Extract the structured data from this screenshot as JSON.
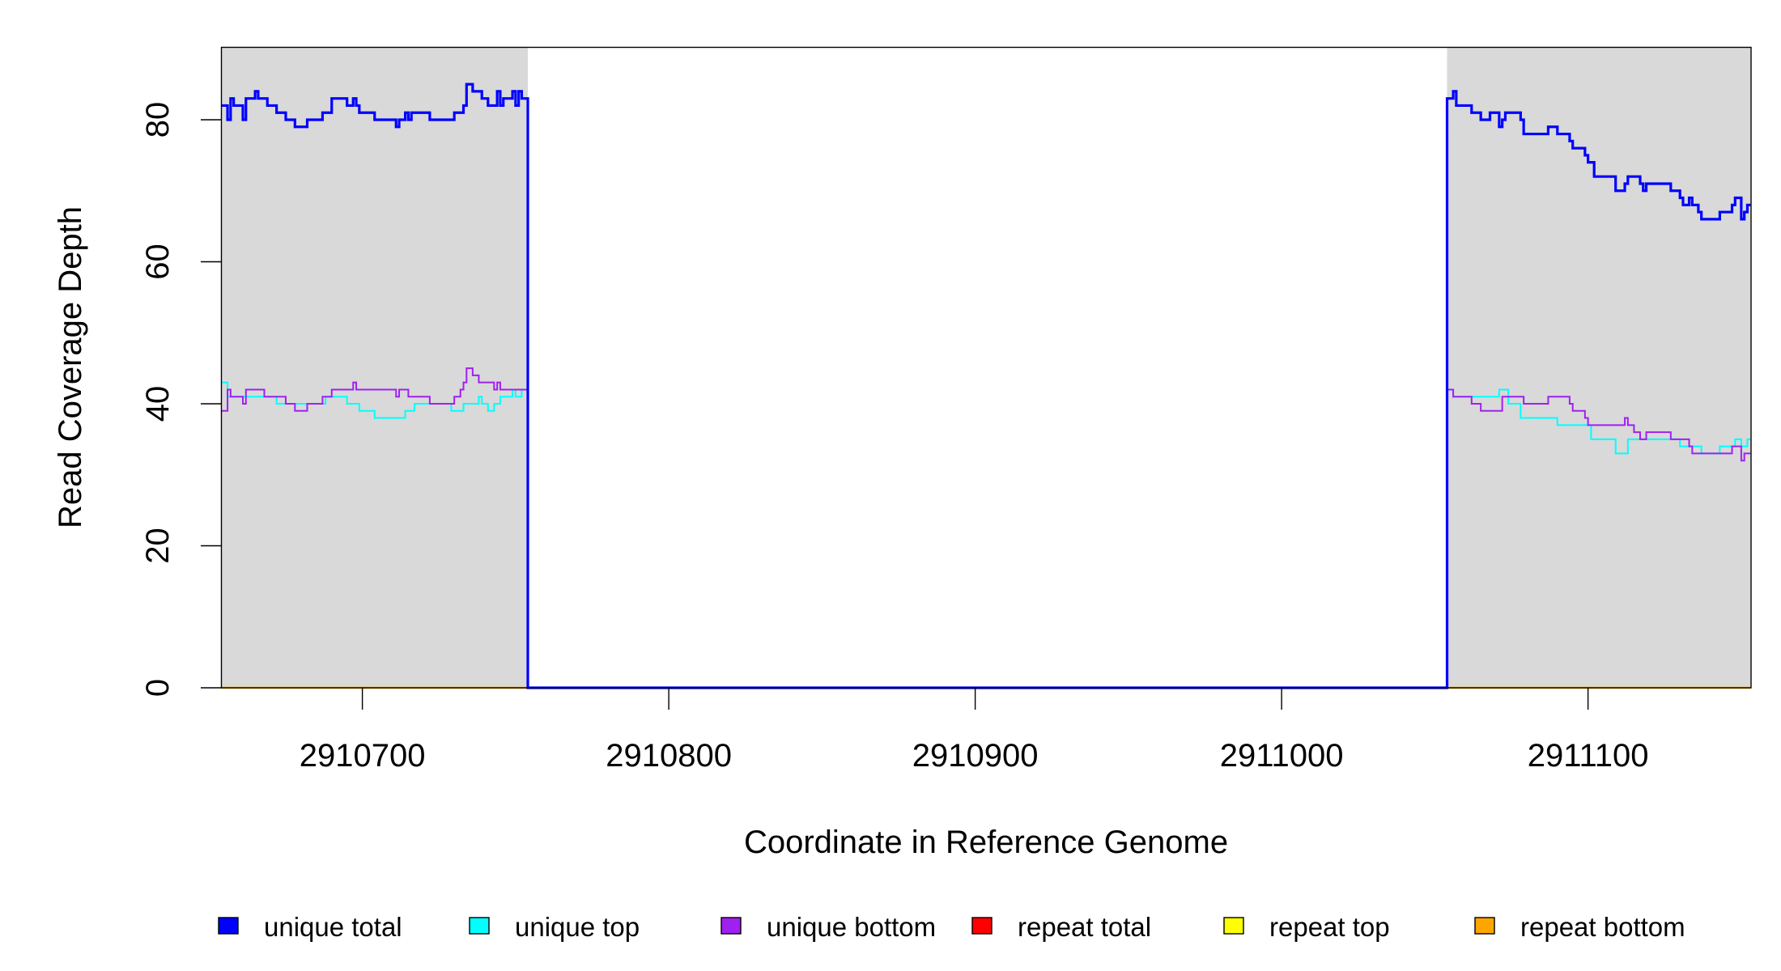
{
  "chart_data": {
    "type": "line",
    "step": true,
    "title": "",
    "xlabel": "Coordinate in Reference Genome",
    "ylabel": "Read Coverage Depth",
    "xlim": [
      2910654,
      2911153
    ],
    "ylim": [
      0,
      90
    ],
    "x_ticks": [
      2910700,
      2910800,
      2910900,
      2911000,
      2911100
    ],
    "y_ticks": [
      0,
      20,
      40,
      60,
      80
    ],
    "grid": false,
    "legend_position": "bottom",
    "shaded_regions": [
      [
        2910654,
        2910754
      ],
      [
        2911054,
        2911153
      ]
    ],
    "shade_color": "#d9d9d9",
    "series": [
      {
        "name": "unique total",
        "color": "#0000ff",
        "steps": [
          [
            2910654,
            82
          ],
          [
            2910656,
            80
          ],
          [
            2910657,
            83
          ],
          [
            2910658,
            82
          ],
          [
            2910661,
            80
          ],
          [
            2910662,
            83
          ],
          [
            2910665,
            84
          ],
          [
            2910666,
            83
          ],
          [
            2910669,
            82
          ],
          [
            2910672,
            81
          ],
          [
            2910675,
            80
          ],
          [
            2910678,
            79
          ],
          [
            2910682,
            80
          ],
          [
            2910687,
            81
          ],
          [
            2910690,
            83
          ],
          [
            2910695,
            82
          ],
          [
            2910697,
            83
          ],
          [
            2910698,
            82
          ],
          [
            2910699,
            81
          ],
          [
            2910704,
            80
          ],
          [
            2910711,
            79
          ],
          [
            2910712,
            80
          ],
          [
            2910714,
            81
          ],
          [
            2910715,
            80
          ],
          [
            2910716,
            81
          ],
          [
            2910722,
            80
          ],
          [
            2910730,
            81
          ],
          [
            2910733,
            82
          ],
          [
            2910734,
            85
          ],
          [
            2910736,
            84
          ],
          [
            2910739,
            83
          ],
          [
            2910741,
            82
          ],
          [
            2910744,
            84
          ],
          [
            2910745,
            82
          ],
          [
            2910746,
            83
          ],
          [
            2910749,
            84
          ],
          [
            2910750,
            82
          ],
          [
            2910751,
            84
          ],
          [
            2910752,
            83
          ],
          [
            2910754,
            0
          ],
          [
            2911054,
            83
          ],
          [
            2911056,
            84
          ],
          [
            2911057,
            82
          ],
          [
            2911062,
            81
          ],
          [
            2911065,
            80
          ],
          [
            2911068,
            81
          ],
          [
            2911071,
            79
          ],
          [
            2911072,
            80
          ],
          [
            2911073,
            81
          ],
          [
            2911078,
            80
          ],
          [
            2911079,
            78
          ],
          [
            2911087,
            79
          ],
          [
            2911090,
            78
          ],
          [
            2911094,
            77
          ],
          [
            2911095,
            76
          ],
          [
            2911099,
            75
          ],
          [
            2911100,
            74
          ],
          [
            2911102,
            72
          ],
          [
            2911109,
            70
          ],
          [
            2911112,
            71
          ],
          [
            2911113,
            72
          ],
          [
            2911117,
            71
          ],
          [
            2911118,
            70
          ],
          [
            2911119,
            71
          ],
          [
            2911127,
            70
          ],
          [
            2911130,
            69
          ],
          [
            2911131,
            68
          ],
          [
            2911133,
            69
          ],
          [
            2911134,
            68
          ],
          [
            2911136,
            67
          ],
          [
            2911137,
            66
          ],
          [
            2911143,
            67
          ],
          [
            2911147,
            68
          ],
          [
            2911148,
            69
          ],
          [
            2911150,
            66
          ],
          [
            2911151,
            67
          ],
          [
            2911152,
            68
          ],
          [
            2911153,
            68
          ]
        ]
      },
      {
        "name": "unique top",
        "color": "#00ffff",
        "steps": [
          [
            2910654,
            43
          ],
          [
            2910656,
            41
          ],
          [
            2910672,
            40
          ],
          [
            2910688,
            41
          ],
          [
            2910695,
            40
          ],
          [
            2910699,
            39
          ],
          [
            2910704,
            38
          ],
          [
            2910714,
            39
          ],
          [
            2910717,
            40
          ],
          [
            2910729,
            39
          ],
          [
            2910733,
            40
          ],
          [
            2910738,
            41
          ],
          [
            2910739,
            40
          ],
          [
            2910741,
            39
          ],
          [
            2910743,
            40
          ],
          [
            2910745,
            41
          ],
          [
            2910749,
            42
          ],
          [
            2910750,
            41
          ],
          [
            2910752,
            42
          ],
          [
            2910754,
            0
          ],
          [
            2911054,
            42
          ],
          [
            2911056,
            41
          ],
          [
            2911071,
            42
          ],
          [
            2911074,
            40
          ],
          [
            2911078,
            38
          ],
          [
            2911090,
            37
          ],
          [
            2911101,
            35
          ],
          [
            2911109,
            33
          ],
          [
            2911113,
            35
          ],
          [
            2911130,
            34
          ],
          [
            2911137,
            33
          ],
          [
            2911143,
            34
          ],
          [
            2911148,
            35
          ],
          [
            2911150,
            34
          ],
          [
            2911152,
            35
          ],
          [
            2911153,
            35
          ]
        ]
      },
      {
        "name": "unique bottom",
        "color": "#a020f0",
        "steps": [
          [
            2910654,
            39
          ],
          [
            2910656,
            42
          ],
          [
            2910657,
            41
          ],
          [
            2910661,
            40
          ],
          [
            2910662,
            42
          ],
          [
            2910668,
            41
          ],
          [
            2910675,
            40
          ],
          [
            2910678,
            39
          ],
          [
            2910682,
            40
          ],
          [
            2910687,
            41
          ],
          [
            2910690,
            42
          ],
          [
            2910697,
            43
          ],
          [
            2910698,
            42
          ],
          [
            2910711,
            41
          ],
          [
            2910712,
            42
          ],
          [
            2910715,
            41
          ],
          [
            2910722,
            40
          ],
          [
            2910730,
            41
          ],
          [
            2910732,
            42
          ],
          [
            2910733,
            43
          ],
          [
            2910734,
            45
          ],
          [
            2910736,
            44
          ],
          [
            2910738,
            43
          ],
          [
            2910743,
            42
          ],
          [
            2910744,
            43
          ],
          [
            2910745,
            42
          ],
          [
            2910754,
            0
          ],
          [
            2911054,
            42
          ],
          [
            2911056,
            41
          ],
          [
            2911062,
            40
          ],
          [
            2911065,
            39
          ],
          [
            2911072,
            41
          ],
          [
            2911079,
            40
          ],
          [
            2911087,
            41
          ],
          [
            2911094,
            40
          ],
          [
            2911095,
            39
          ],
          [
            2911099,
            38
          ],
          [
            2911100,
            37
          ],
          [
            2911112,
            38
          ],
          [
            2911113,
            37
          ],
          [
            2911115,
            36
          ],
          [
            2911117,
            35
          ],
          [
            2911119,
            36
          ],
          [
            2911127,
            35
          ],
          [
            2911133,
            34
          ],
          [
            2911134,
            33
          ],
          [
            2911147,
            34
          ],
          [
            2911150,
            32
          ],
          [
            2911151,
            33
          ],
          [
            2911153,
            33
          ]
        ]
      },
      {
        "name": "repeat total",
        "color": "#ff0000",
        "steps": [
          [
            2910654,
            0
          ],
          [
            2911153,
            0
          ]
        ]
      },
      {
        "name": "repeat top",
        "color": "#ffff00",
        "steps": [
          [
            2910654,
            0
          ],
          [
            2911153,
            0
          ]
        ]
      },
      {
        "name": "repeat bottom",
        "color": "#ffa500",
        "steps": [
          [
            2910654,
            0
          ],
          [
            2911153,
            0
          ]
        ]
      }
    ]
  }
}
